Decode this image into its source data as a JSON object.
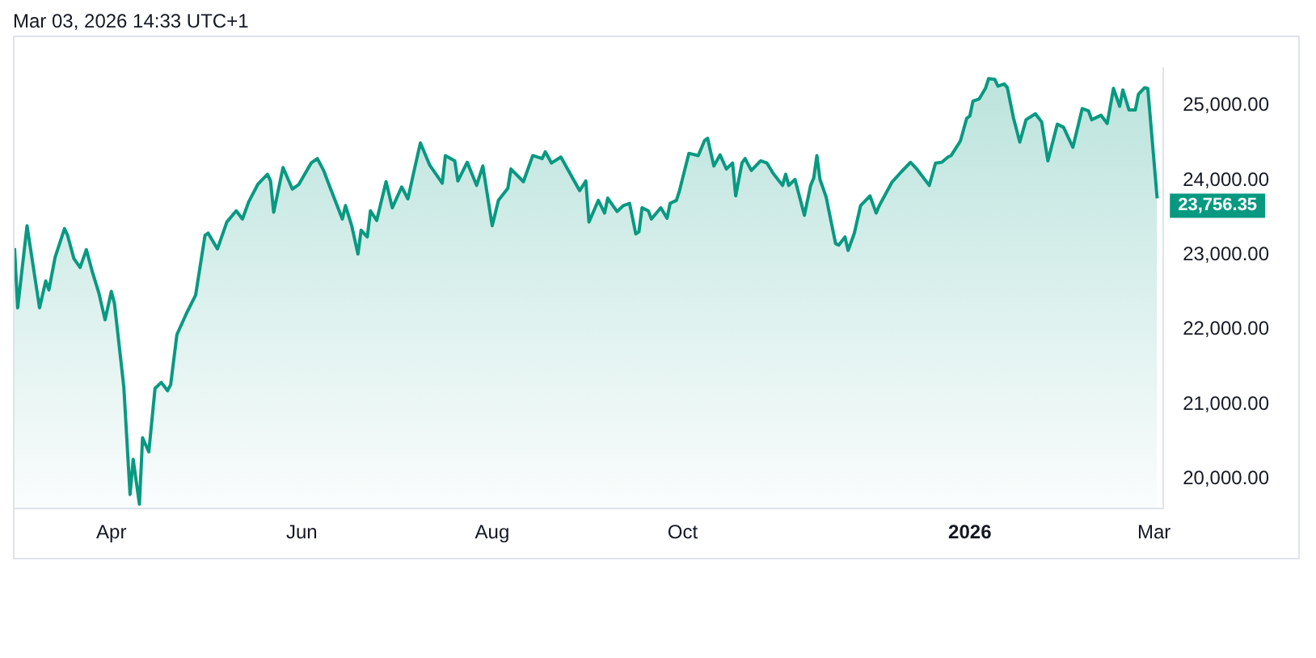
{
  "chart_data": {
    "type": "area",
    "color": "#089981",
    "x": [
      "2025-03-01",
      "2025-03-02",
      "2025-03-05",
      "2025-03-09",
      "2025-03-11",
      "2025-03-12",
      "2025-03-14",
      "2025-03-17",
      "2025-03-18",
      "2025-03-20",
      "2025-03-22",
      "2025-03-24",
      "2025-03-26",
      "2025-03-28",
      "2025-03-30",
      "2025-04-01",
      "2025-04-02",
      "2025-04-05",
      "2025-04-07",
      "2025-04-08",
      "2025-04-10",
      "2025-04-11",
      "2025-04-13",
      "2025-04-15",
      "2025-04-17",
      "2025-04-19",
      "2025-04-20",
      "2025-04-22",
      "2025-04-25",
      "2025-04-28",
      "2025-05-01",
      "2025-05-02",
      "2025-05-05",
      "2025-05-08",
      "2025-05-11",
      "2025-05-13",
      "2025-05-15",
      "2025-05-18",
      "2025-05-21",
      "2025-05-22",
      "2025-05-23",
      "2025-05-26",
      "2025-05-29",
      "2025-05-31",
      "2025-06-04",
      "2025-06-06",
      "2025-06-08",
      "2025-06-10",
      "2025-06-14",
      "2025-06-15",
      "2025-06-17",
      "2025-06-19",
      "2025-06-20",
      "2025-06-22",
      "2025-06-23",
      "2025-06-25",
      "2025-06-28",
      "2025-06-30",
      "2025-07-03",
      "2025-07-05",
      "2025-07-07",
      "2025-07-09",
      "2025-07-12",
      "2025-07-16",
      "2025-07-17",
      "2025-07-20",
      "2025-07-21",
      "2025-07-24",
      "2025-07-27",
      "2025-07-29",
      "2025-08-01",
      "2025-08-03",
      "2025-08-06",
      "2025-08-07",
      "2025-08-11",
      "2025-08-14",
      "2025-08-17",
      "2025-08-18",
      "2025-08-20",
      "2025-08-23",
      "2025-08-27",
      "2025-08-29",
      "2025-08-31",
      "2025-09-01",
      "2025-09-04",
      "2025-09-06",
      "2025-09-07",
      "2025-09-10",
      "2025-09-12",
      "2025-09-14",
      "2025-09-16",
      "2025-09-17",
      "2025-09-18",
      "2025-09-20",
      "2025-09-21",
      "2025-09-24",
      "2025-09-26",
      "2025-09-27",
      "2025-09-29",
      "2025-09-30",
      "2025-10-03",
      "2025-10-06",
      "2025-10-08",
      "2025-10-09",
      "2025-10-11",
      "2025-10-13",
      "2025-10-15",
      "2025-10-17",
      "2025-10-18",
      "2025-10-20",
      "2025-10-21",
      "2025-10-23",
      "2025-10-26",
      "2025-10-28",
      "2025-10-30",
      "2025-11-02",
      "2025-11-03",
      "2025-11-04",
      "2025-11-06",
      "2025-11-09",
      "2025-11-11",
      "2025-11-12",
      "2025-11-13",
      "2025-11-14",
      "2025-11-16",
      "2025-11-17",
      "2025-11-19",
      "2025-11-20",
      "2025-11-22",
      "2025-11-23",
      "2025-11-25",
      "2025-11-27",
      "2025-11-30",
      "2025-12-02",
      "2025-12-03",
      "2025-12-07",
      "2025-12-10",
      "2025-12-13",
      "2025-12-15",
      "2025-12-19",
      "2025-12-21",
      "2025-12-23",
      "2025-12-25",
      "2025-12-26",
      "2025-12-28",
      "2025-12-29",
      "2025-12-31",
      "2026-01-01",
      "2026-01-02",
      "2026-01-04",
      "2026-01-06",
      "2026-01-07",
      "2026-01-09",
      "2026-01-10",
      "2026-01-12",
      "2026-01-13",
      "2026-01-15",
      "2026-01-17",
      "2026-01-19",
      "2026-01-22",
      "2026-01-24",
      "2026-01-26",
      "2026-01-29",
      "2026-01-31",
      "2026-02-03",
      "2026-02-06",
      "2026-02-08",
      "2026-02-09",
      "2026-02-12",
      "2026-02-14",
      "2026-02-16",
      "2026-02-18",
      "2026-02-19",
      "2026-02-21",
      "2026-02-23",
      "2026-02-24",
      "2026-02-26",
      "2026-02-27",
      "2026-03-02"
    ],
    "values": [
      23090,
      22290,
      23390,
      22290,
      22650,
      22530,
      22970,
      23350,
      23260,
      22950,
      22830,
      23070,
      22760,
      22490,
      22130,
      22510,
      22350,
      21230,
      19790,
      20260,
      19660,
      20550,
      20360,
      21210,
      21290,
      21180,
      21260,
      21930,
      22210,
      22460,
      23260,
      23290,
      23080,
      23440,
      23590,
      23480,
      23710,
      23950,
      24080,
      23990,
      23570,
      24170,
      23880,
      23940,
      24230,
      24290,
      24130,
      23910,
      23480,
      23660,
      23390,
      23010,
      23330,
      23240,
      23590,
      23460,
      23980,
      23630,
      23910,
      23750,
      24130,
      24500,
      24200,
      23960,
      24330,
      24260,
      23990,
      24240,
      23930,
      24190,
      23390,
      23730,
      23890,
      24150,
      23980,
      24330,
      24290,
      24380,
      24230,
      24310,
      24010,
      23860,
      23990,
      23440,
      23730,
      23560,
      23760,
      23580,
      23660,
      23690,
      23280,
      23310,
      23630,
      23590,
      23480,
      23630,
      23490,
      23690,
      23730,
      23860,
      24360,
      24330,
      24530,
      24560,
      24190,
      24340,
      24150,
      24230,
      23790,
      24230,
      24290,
      24130,
      24260,
      24230,
      24090,
      23930,
      24080,
      23930,
      24010,
      23530,
      23930,
      24030,
      24330,
      24010,
      23770,
      23560,
      23150,
      23130,
      23240,
      23060,
      23290,
      23660,
      23790,
      23560,
      23660,
      23970,
      24110,
      24240,
      24150,
      23930,
      24230,
      24240,
      24310,
      24330,
      24460,
      24530,
      24830,
      24860,
      25060,
      25090,
      25230,
      25360,
      25350,
      25260,
      25290,
      25240,
      24830,
      24510,
      24810,
      24890,
      24780,
      24260,
      24750,
      24710,
      24440,
      24960,
      24930,
      24810,
      24870,
      24760,
      25230,
      24990,
      25210,
      24940,
      24940,
      25150,
      25240,
      25230,
      23756.35
    ],
    "xlim": [
      "2025-03-01",
      "2026-03-04"
    ],
    "xticks": [
      {
        "value": "2025-04-01",
        "label": "Apr"
      },
      {
        "value": "2025-06-01",
        "label": "Jun"
      },
      {
        "value": "2025-08-01",
        "label": "Aug"
      },
      {
        "value": "2025-10-01",
        "label": "Oct"
      },
      {
        "value": "2026-01-01",
        "label": "2026"
      },
      {
        "value": "2026-03-01",
        "label": "Mar"
      }
    ],
    "ylim": [
      19600,
      25500
    ],
    "yticks": [
      {
        "value": 20000,
        "label": "20,000.00"
      },
      {
        "value": 21000,
        "label": "21,000.00"
      },
      {
        "value": 22000,
        "label": "22,000.00"
      },
      {
        "value": 23000,
        "label": "23,000.00"
      },
      {
        "value": 24000,
        "label": "24,000.00"
      },
      {
        "value": 25000,
        "label": "25,000.00"
      }
    ],
    "annotations": [
      "Mar 03, 2026 14:33 UTC+1",
      {
        "text": "23,756.35",
        "x": "2026-03-02",
        "y": 23756.35
      }
    ]
  }
}
